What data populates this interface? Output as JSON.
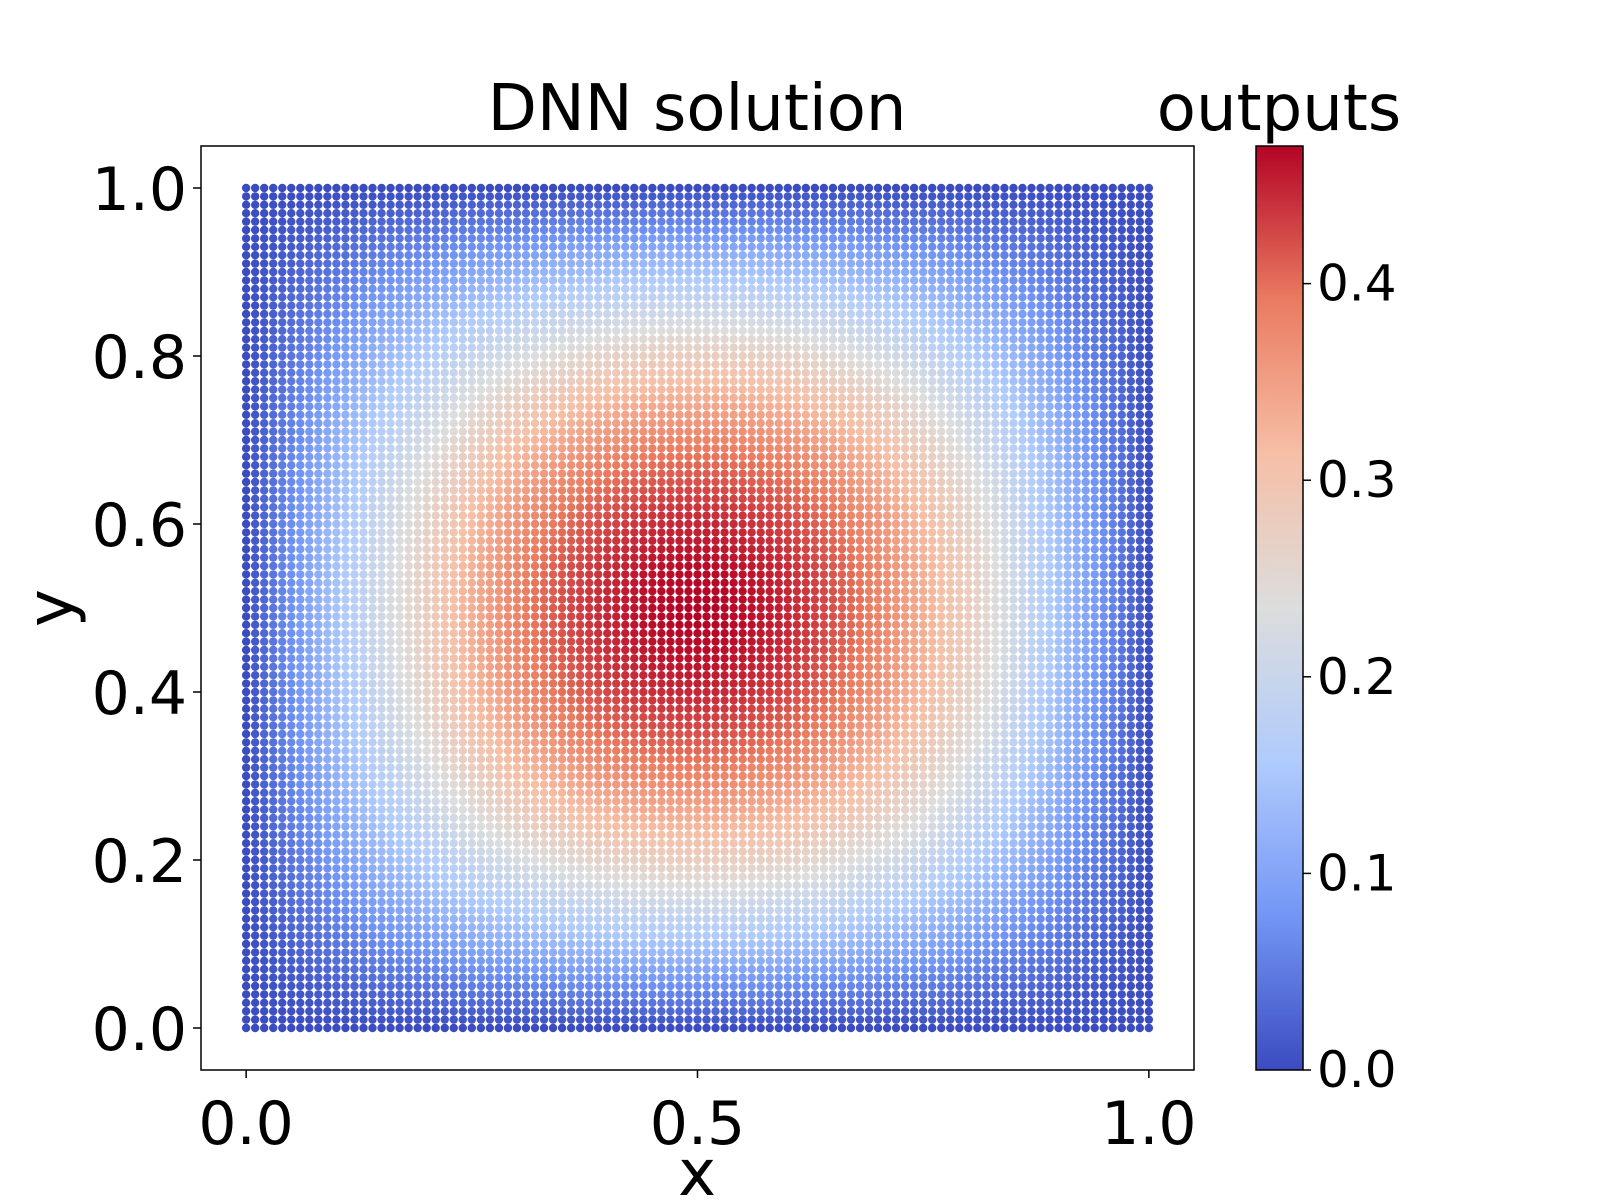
{
  "chart_data": {
    "type": "scatter",
    "title": "DNN solution",
    "xlabel": "x",
    "ylabel": "y",
    "xlim": [
      -0.05,
      1.05
    ],
    "ylim": [
      -0.05,
      1.05
    ],
    "xticks": [
      0.0,
      0.5,
      1.0
    ],
    "xtick_labels": [
      "0.0",
      "0.5",
      "1.0"
    ],
    "yticks": [
      0.0,
      0.2,
      0.4,
      0.6,
      0.8,
      1.0
    ],
    "ytick_labels": [
      "0.0",
      "0.2",
      "0.4",
      "0.6",
      "0.8",
      "1.0"
    ],
    "grid": false,
    "points": {
      "x_range": [
        0.0,
        1.0
      ],
      "y_range": [
        0.0,
        1.0
      ],
      "per_axis": 101,
      "function": "0.47 * sin(pi*x) * sin(pi*y)",
      "peak": {
        "x": 0.5,
        "y": 0.5,
        "value": 0.47
      }
    },
    "colorbar": {
      "title": "outputs",
      "colormap": "coolwarm",
      "range": [
        0.0,
        0.47
      ],
      "ticks": [
        0.0,
        0.1,
        0.2,
        0.3,
        0.4
      ],
      "tick_labels": [
        "0.0",
        "0.1",
        "0.2",
        "0.3",
        "0.4"
      ],
      "colors": [
        "#3b4cc0",
        "#7396f5",
        "#b0cbfc",
        "#dcdddd",
        "#f6bfa6",
        "#ea7b60",
        "#b40426"
      ]
    }
  }
}
